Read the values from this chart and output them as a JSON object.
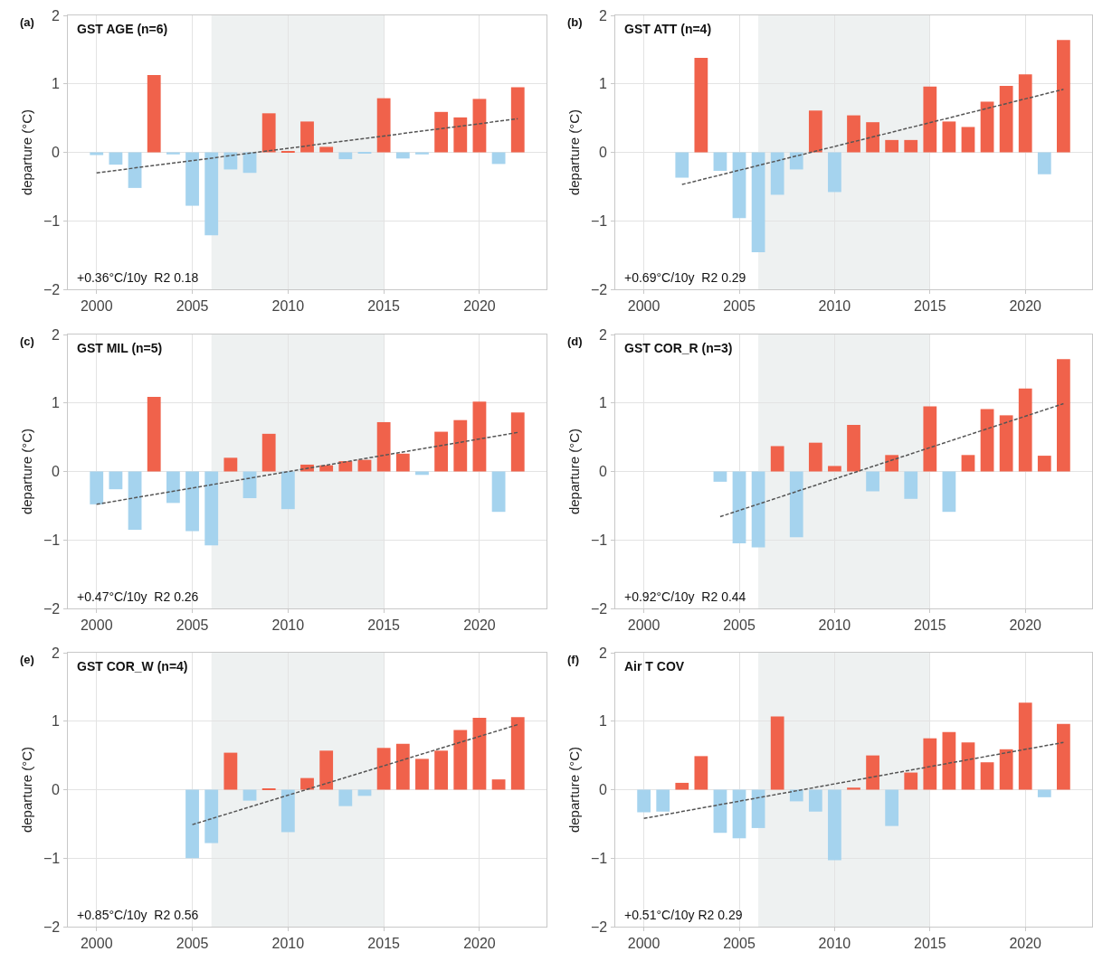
{
  "chart_data": [
    {
      "type": "bar",
      "title": "GST AGE (n=6)",
      "ylabel": "departure (°C)",
      "annotations": [
        "(a)",
        "+0.36°C/10y  R2 0.18"
      ],
      "xlim": [
        1998.5,
        2023.5
      ],
      "xticks": [
        2000,
        2005,
        2010,
        2015,
        2020
      ],
      "ylim": [
        -2,
        2
      ],
      "yticks": [
        -2,
        -1,
        0,
        1,
        2
      ],
      "grid": true,
      "bands": [
        {
          "axis": "x",
          "from": 2006,
          "to": 2015,
          "color": "#eef1f1"
        }
      ],
      "series": [
        {
          "x": [
            2000,
            2001,
            2002,
            2003,
            2004,
            2005,
            2006,
            2007,
            2008,
            2009,
            2010,
            2011,
            2012,
            2013,
            2014,
            2015,
            2016,
            2017,
            2018,
            2019,
            2020,
            2021,
            2022
          ],
          "values": [
            -0.04,
            -0.18,
            -0.52,
            1.13,
            -0.03,
            -0.78,
            -1.21,
            -0.25,
            -0.3,
            0.57,
            0.01,
            0.45,
            0.08,
            -0.1,
            -0.02,
            0.79,
            -0.09,
            -0.03,
            0.59,
            0.51,
            0.78,
            -0.17,
            0.95
          ],
          "colors": [
            "#a5d3ee",
            "#a5d3ee",
            "#a5d3ee",
            "#f0624b",
            "#a5d3ee",
            "#a5d3ee",
            "#a5d3ee",
            "#a5d3ee",
            "#a5d3ee",
            "#f0624b",
            "#f0624b",
            "#f0624b",
            "#f0624b",
            "#a5d3ee",
            "#a5d3ee",
            "#f0624b",
            "#a5d3ee",
            "#a5d3ee",
            "#f0624b",
            "#f0624b",
            "#f0624b",
            "#a5d3ee",
            "#f0624b"
          ]
        },
        {
          "type": "line",
          "x": [
            2000,
            2022
          ],
          "values": [
            -0.3,
            0.49
          ],
          "color": "#555555",
          "line_style": "dashed"
        }
      ]
    },
    {
      "type": "bar",
      "title": "GST ATT (n=4)",
      "ylabel": "departure (°C)",
      "annotations": [
        "(b)",
        "+0.69°C/10y  R2 0.29"
      ],
      "xlim": [
        1998.5,
        2023.5
      ],
      "xticks": [
        2000,
        2005,
        2010,
        2015,
        2020
      ],
      "ylim": [
        -2,
        2
      ],
      "yticks": [
        -2,
        -1,
        0,
        1,
        2
      ],
      "grid": true,
      "bands": [
        {
          "axis": "x",
          "from": 2006,
          "to": 2015,
          "color": "#eef1f1"
        }
      ],
      "series": [
        {
          "x": [
            2002,
            2003,
            2004,
            2005,
            2006,
            2007,
            2008,
            2009,
            2010,
            2011,
            2012,
            2013,
            2014,
            2015,
            2016,
            2017,
            2018,
            2019,
            2020,
            2021,
            2022
          ],
          "values": [
            -0.37,
            1.38,
            -0.27,
            -0.96,
            -1.46,
            -0.62,
            -0.25,
            0.61,
            -0.58,
            0.54,
            0.44,
            0.18,
            0.18,
            0.96,
            0.45,
            0.37,
            0.74,
            0.97,
            1.14,
            -0.32,
            1.64
          ],
          "colors": [
            "#a5d3ee",
            "#f0624b",
            "#a5d3ee",
            "#a5d3ee",
            "#a5d3ee",
            "#a5d3ee",
            "#a5d3ee",
            "#f0624b",
            "#a5d3ee",
            "#f0624b",
            "#f0624b",
            "#f0624b",
            "#f0624b",
            "#f0624b",
            "#f0624b",
            "#f0624b",
            "#f0624b",
            "#f0624b",
            "#f0624b",
            "#a5d3ee",
            "#f0624b"
          ]
        },
        {
          "type": "line",
          "x": [
            2002,
            2022
          ],
          "values": [
            -0.47,
            0.92
          ],
          "color": "#555555",
          "line_style": "dashed"
        }
      ]
    },
    {
      "type": "bar",
      "title": "GST MIL (n=5)",
      "ylabel": "departure (°C)",
      "annotations": [
        "(c)",
        "+0.47°C/10y  R2 0.26"
      ],
      "xlim": [
        1998.5,
        2023.5
      ],
      "xticks": [
        2000,
        2005,
        2010,
        2015,
        2020
      ],
      "ylim": [
        -2,
        2
      ],
      "yticks": [
        -2,
        -1,
        0,
        1,
        2
      ],
      "grid": true,
      "bands": [
        {
          "axis": "x",
          "from": 2006,
          "to": 2015,
          "color": "#eef1f1"
        }
      ],
      "series": [
        {
          "x": [
            2000,
            2001,
            2002,
            2003,
            2004,
            2005,
            2006,
            2007,
            2008,
            2009,
            2010,
            2011,
            2012,
            2013,
            2014,
            2015,
            2016,
            2017,
            2018,
            2019,
            2020,
            2021,
            2022
          ],
          "values": [
            -0.48,
            -0.26,
            -0.85,
            1.09,
            -0.46,
            -0.87,
            -1.08,
            0.2,
            -0.39,
            0.55,
            -0.55,
            0.1,
            0.09,
            0.15,
            0.17,
            0.72,
            0.26,
            -0.05,
            0.58,
            0.75,
            1.02,
            -0.59,
            0.86
          ],
          "colors": [
            "#a5d3ee",
            "#a5d3ee",
            "#a5d3ee",
            "#f0624b",
            "#a5d3ee",
            "#a5d3ee",
            "#a5d3ee",
            "#f0624b",
            "#a5d3ee",
            "#f0624b",
            "#a5d3ee",
            "#f0624b",
            "#f0624b",
            "#f0624b",
            "#f0624b",
            "#f0624b",
            "#f0624b",
            "#a5d3ee",
            "#f0624b",
            "#f0624b",
            "#f0624b",
            "#a5d3ee",
            "#f0624b"
          ]
        },
        {
          "type": "line",
          "x": [
            2000,
            2022
          ],
          "values": [
            -0.48,
            0.57
          ],
          "color": "#555555",
          "line_style": "dashed"
        }
      ]
    },
    {
      "type": "bar",
      "title": "GST COR_R (n=3)",
      "ylabel": "departure (°C)",
      "annotations": [
        "(d)",
        "+0.92°C/10y  R2 0.44"
      ],
      "xlim": [
        1998.5,
        2023.5
      ],
      "xticks": [
        2000,
        2005,
        2010,
        2015,
        2020
      ],
      "ylim": [
        -2,
        2
      ],
      "yticks": [
        -2,
        -1,
        0,
        1,
        2
      ],
      "grid": true,
      "bands": [
        {
          "axis": "x",
          "from": 2006,
          "to": 2015,
          "color": "#eef1f1"
        }
      ],
      "series": [
        {
          "x": [
            2004,
            2005,
            2006,
            2007,
            2008,
            2009,
            2010,
            2011,
            2012,
            2013,
            2014,
            2015,
            2016,
            2017,
            2018,
            2019,
            2020,
            2021,
            2022
          ],
          "values": [
            -0.15,
            -1.05,
            -1.11,
            0.37,
            -0.96,
            0.42,
            0.08,
            0.68,
            -0.29,
            0.24,
            -0.4,
            0.95,
            -0.59,
            0.24,
            0.91,
            0.82,
            1.21,
            0.23,
            1.64
          ],
          "colors": [
            "#a5d3ee",
            "#a5d3ee",
            "#a5d3ee",
            "#f0624b",
            "#a5d3ee",
            "#f0624b",
            "#f0624b",
            "#f0624b",
            "#a5d3ee",
            "#f0624b",
            "#a5d3ee",
            "#f0624b",
            "#a5d3ee",
            "#f0624b",
            "#f0624b",
            "#f0624b",
            "#f0624b",
            "#f0624b",
            "#f0624b"
          ]
        },
        {
          "type": "line",
          "x": [
            2004,
            2022
          ],
          "values": [
            -0.66,
            0.99
          ],
          "color": "#555555",
          "line_style": "dashed"
        }
      ]
    },
    {
      "type": "bar",
      "title": "GST COR_W (n=4)",
      "ylabel": "departure (°C)",
      "annotations": [
        "(e)",
        "+0.85°C/10y  R2 0.56"
      ],
      "xlim": [
        1998.5,
        2023.5
      ],
      "xticks": [
        2000,
        2005,
        2010,
        2015,
        2020
      ],
      "ylim": [
        -2,
        2
      ],
      "yticks": [
        -2,
        -1,
        0,
        1,
        2
      ],
      "grid": true,
      "bands": [
        {
          "axis": "x",
          "from": 2006,
          "to": 2015,
          "color": "#eef1f1"
        }
      ],
      "series": [
        {
          "x": [
            2005,
            2006,
            2007,
            2008,
            2009,
            2010,
            2011,
            2012,
            2013,
            2014,
            2015,
            2016,
            2017,
            2018,
            2019,
            2020,
            2021,
            2022
          ],
          "values": [
            -1.0,
            -0.78,
            0.54,
            -0.16,
            0.02,
            -0.62,
            0.17,
            0.57,
            -0.24,
            -0.09,
            0.61,
            0.67,
            0.45,
            0.57,
            0.87,
            1.05,
            0.15,
            1.06
          ],
          "colors": [
            "#a5d3ee",
            "#a5d3ee",
            "#f0624b",
            "#a5d3ee",
            "#f0624b",
            "#a5d3ee",
            "#f0624b",
            "#f0624b",
            "#a5d3ee",
            "#a5d3ee",
            "#f0624b",
            "#f0624b",
            "#f0624b",
            "#f0624b",
            "#f0624b",
            "#f0624b",
            "#f0624b",
            "#f0624b"
          ]
        },
        {
          "type": "line",
          "x": [
            2005,
            2022
          ],
          "values": [
            -0.51,
            0.95
          ],
          "color": "#555555",
          "line_style": "dashed"
        }
      ]
    },
    {
      "type": "bar",
      "title": "Air T COV",
      "ylabel": "departure (°C)",
      "annotations": [
        "(f)",
        "+0.51°C/10y R2 0.29"
      ],
      "xlim": [
        1998.5,
        2023.5
      ],
      "xticks": [
        2000,
        2005,
        2010,
        2015,
        2020
      ],
      "ylim": [
        -2,
        2
      ],
      "yticks": [
        -2,
        -1,
        0,
        1,
        2
      ],
      "grid": true,
      "bands": [
        {
          "axis": "x",
          "from": 2006,
          "to": 2015,
          "color": "#eef1f1"
        }
      ],
      "series": [
        {
          "x": [
            2000,
            2001,
            2002,
            2003,
            2004,
            2005,
            2006,
            2007,
            2008,
            2009,
            2010,
            2011,
            2012,
            2013,
            2014,
            2015,
            2016,
            2017,
            2018,
            2019,
            2020,
            2021,
            2022
          ],
          "values": [
            -0.33,
            -0.32,
            0.1,
            0.49,
            -0.63,
            -0.71,
            -0.56,
            1.07,
            -0.17,
            -0.32,
            -1.03,
            0.03,
            0.5,
            -0.53,
            0.25,
            0.75,
            0.84,
            0.69,
            0.4,
            0.59,
            1.27,
            -0.11,
            0.96
          ],
          "colors": [
            "#a5d3ee",
            "#a5d3ee",
            "#f0624b",
            "#f0624b",
            "#a5d3ee",
            "#a5d3ee",
            "#a5d3ee",
            "#f0624b",
            "#a5d3ee",
            "#a5d3ee",
            "#a5d3ee",
            "#f0624b",
            "#f0624b",
            "#a5d3ee",
            "#f0624b",
            "#f0624b",
            "#f0624b",
            "#f0624b",
            "#f0624b",
            "#f0624b",
            "#f0624b",
            "#a5d3ee",
            "#f0624b"
          ]
        },
        {
          "type": "line",
          "x": [
            2000,
            2022
          ],
          "values": [
            -0.42,
            0.69
          ],
          "color": "#555555",
          "line_style": "dashed"
        }
      ]
    }
  ]
}
